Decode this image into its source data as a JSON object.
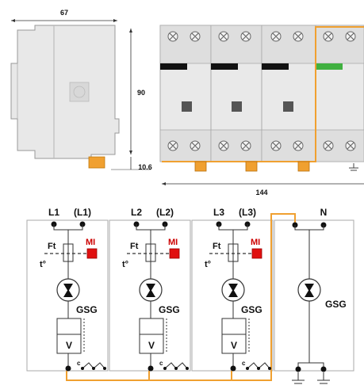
{
  "dimensions": {
    "width_top": "67",
    "height_right": "90",
    "foot_height": "10.6",
    "width_bottom": "144"
  },
  "modules": [
    {
      "input": "L1",
      "output": "(L1)",
      "fuse": "Ft",
      "indicator": "MI",
      "thermal": "t°",
      "arrester": "GSG",
      "varistor": "V",
      "contact": "c"
    },
    {
      "input": "L2",
      "output": "(L2)",
      "fuse": "Ft",
      "indicator": "MI",
      "thermal": "t°",
      "arrester": "GSG",
      "varistor": "V",
      "contact": "c"
    },
    {
      "input": "L3",
      "output": "(L3)",
      "fuse": "Ft",
      "indicator": "MI",
      "thermal": "t°",
      "arrester": "GSG",
      "varistor": "V",
      "contact": "c"
    }
  ],
  "neutral": {
    "input": "N",
    "arrester": "GSG"
  },
  "colors": {
    "frame": "#f0a030",
    "indicator_red": "#e01010",
    "indicator_green": "#40b040",
    "housing": "#e6e6e6",
    "housing_dark": "#cfcfcf"
  },
  "icons": [
    "screw-terminal-icon",
    "ground-icon"
  ]
}
